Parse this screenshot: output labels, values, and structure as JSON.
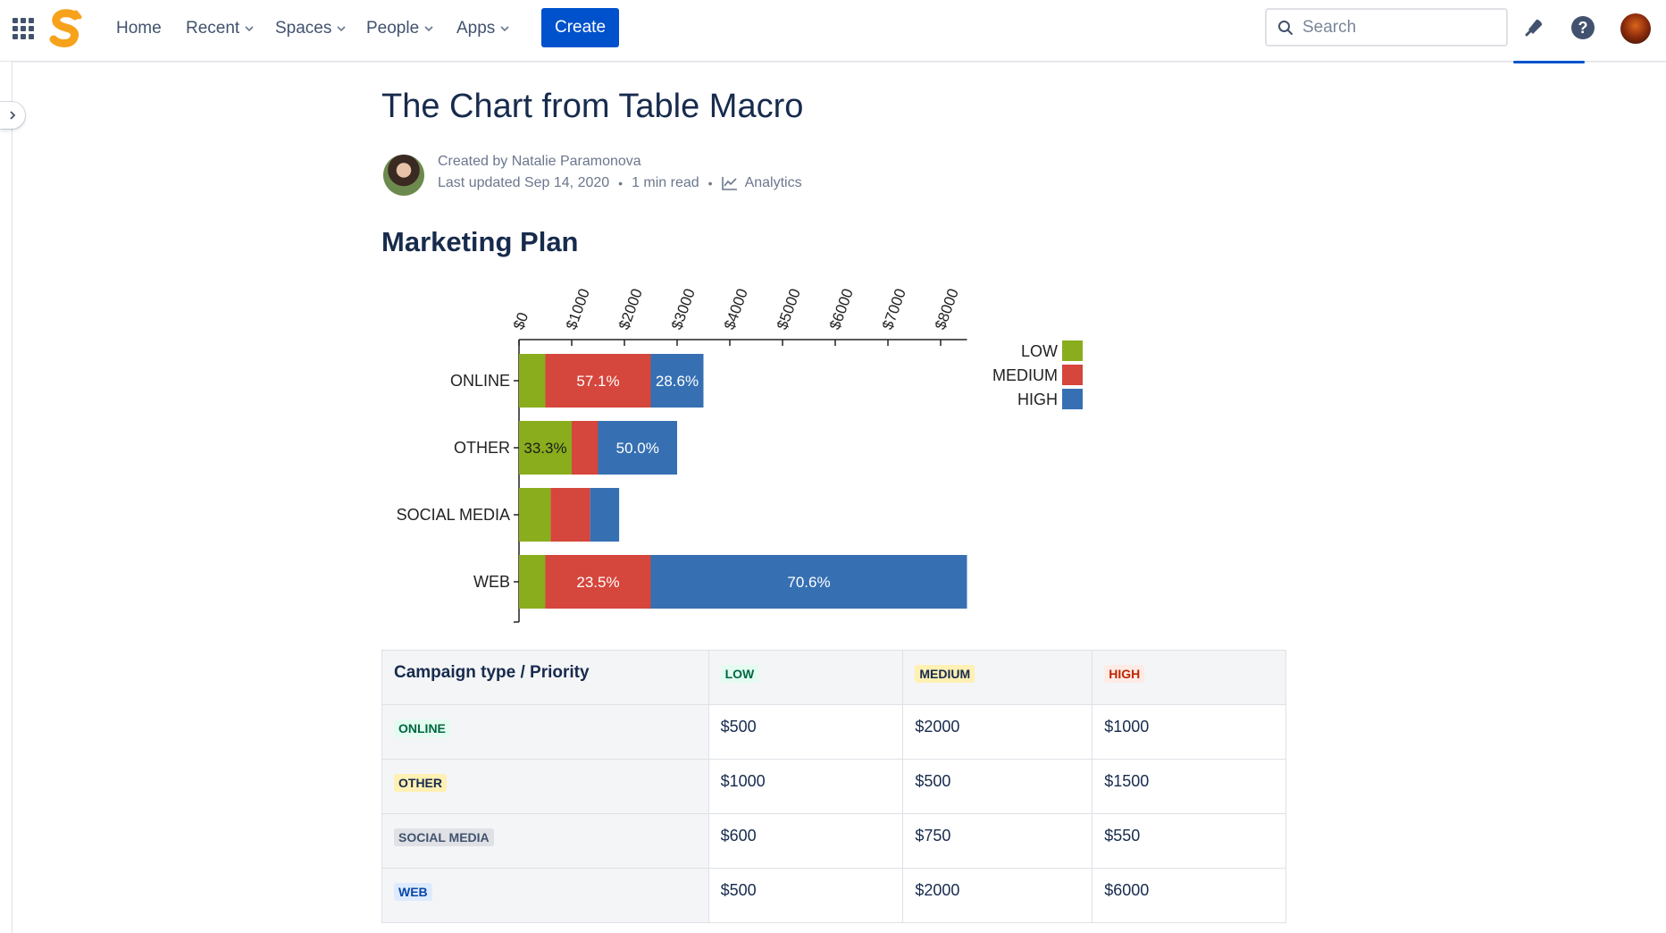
{
  "nav": {
    "home": "Home",
    "recent": "Recent",
    "spaces": "Spaces",
    "people": "People",
    "apps": "Apps",
    "create": "Create",
    "search_placeholder": "Search"
  },
  "page": {
    "title": "The Chart from Table Macro",
    "created_by": "Created by Natalie Paramonova",
    "last_updated": "Last updated Sep 14, 2020",
    "read_time": "1 min read",
    "analytics": "Analytics",
    "section_title": "Marketing Plan"
  },
  "chart_data": {
    "type": "bar",
    "orientation": "horizontal",
    "stacked": true,
    "categories": [
      "ONLINE",
      "OTHER",
      "SOCIAL MEDIA",
      "WEB"
    ],
    "series": [
      {
        "name": "LOW",
        "color": "#8aad1d",
        "values": [
          500,
          1000,
          600,
          500
        ]
      },
      {
        "name": "MEDIUM",
        "color": "#d5463c",
        "values": [
          2000,
          500,
          750,
          2000
        ]
      },
      {
        "name": "HIGH",
        "color": "#3670b3",
        "values": [
          1000,
          1500,
          550,
          6000
        ]
      }
    ],
    "data_labels": [
      [
        "",
        "57.1%",
        "28.6%"
      ],
      [
        "33.3%",
        "",
        "50.0%"
      ],
      [
        "",
        "",
        ""
      ],
      [
        "",
        "23.5%",
        "70.6%"
      ]
    ],
    "x_ticks": [
      "$0",
      "$1000",
      "$2000",
      "$3000",
      "$4000",
      "$5000",
      "$6000",
      "$7000",
      "$8000"
    ],
    "xlim": [
      0,
      8500
    ],
    "x_axis_position": "top",
    "legend_position": "right",
    "grid": false
  },
  "table": {
    "header": [
      "Campaign type / Priority",
      "LOW",
      "MEDIUM",
      "HIGH"
    ],
    "rows": [
      {
        "label": "ONLINE",
        "values": [
          "$500",
          "$2000",
          "$1000"
        ]
      },
      {
        "label": "OTHER",
        "values": [
          "$1000",
          "$500",
          "$1500"
        ]
      },
      {
        "label": "SOCIAL MEDIA",
        "values": [
          "$600",
          "$750",
          "$550"
        ]
      },
      {
        "label": "WEB",
        "values": [
          "$500",
          "$2000",
          "$6000"
        ]
      }
    ]
  }
}
